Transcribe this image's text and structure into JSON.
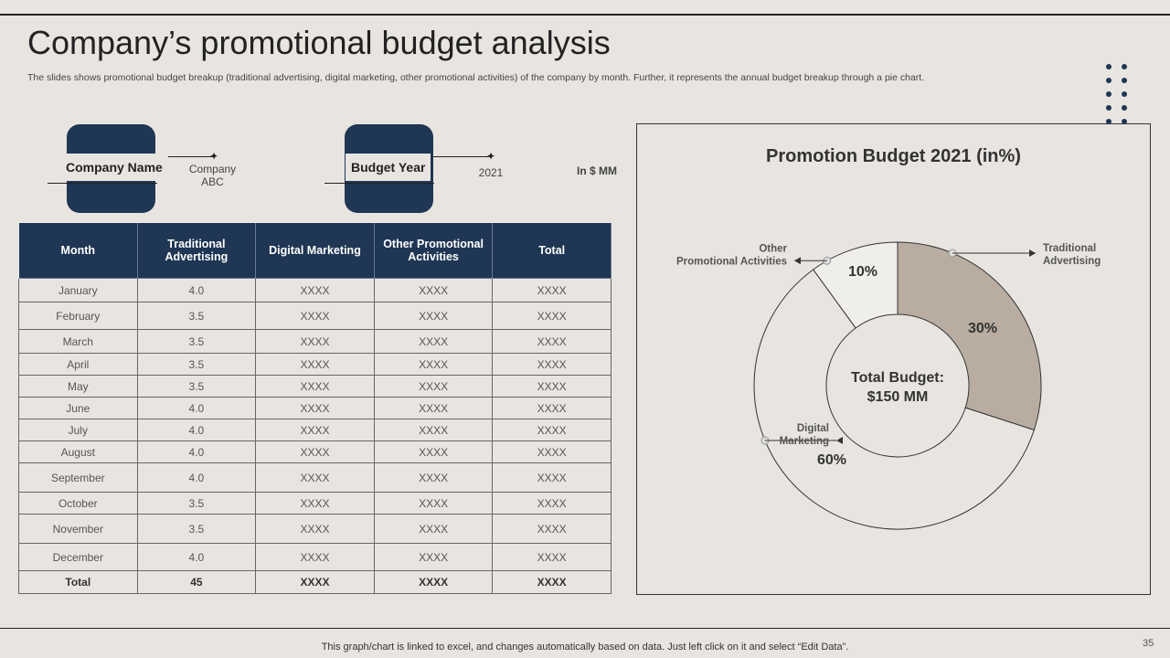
{
  "title": "Company’s promotional budget analysis",
  "subtitle": "The slides shows promotional budget breakup (traditional advertising, digital marketing, other promotional activities) of the company by month. Further, it represents the annual budget breakup through a pie chart.",
  "info": {
    "company_label": "Company Name",
    "company_value_line1": "Company",
    "company_value_line2": "ABC",
    "year_label": "Budget Year",
    "year_value": "2021",
    "unit": "In $ MM"
  },
  "table": {
    "headers": [
      "Month",
      "Traditional Advertising",
      "Digital Marketing",
      "Other Promotional Activities",
      "Total"
    ],
    "rows": [
      [
        "January",
        "4.0",
        "XXXX",
        "XXXX",
        "XXXX"
      ],
      [
        "February",
        "3.5",
        "XXXX",
        "XXXX",
        "XXXX"
      ],
      [
        "March",
        "3.5",
        "XXXX",
        "XXXX",
        "XXXX"
      ],
      [
        "April",
        "3.5",
        "XXXX",
        "XXXX",
        "XXXX"
      ],
      [
        "May",
        "3.5",
        "XXXX",
        "XXXX",
        "XXXX"
      ],
      [
        "June",
        "4.0",
        "XXXX",
        "XXXX",
        "XXXX"
      ],
      [
        "July",
        "4.0",
        "XXXX",
        "XXXX",
        "XXXX"
      ],
      [
        "August",
        "4.0",
        "XXXX",
        "XXXX",
        "XXXX"
      ],
      [
        "September",
        "4.0",
        "XXXX",
        "XXXX",
        "XXXX"
      ],
      [
        "October",
        "3.5",
        "XXXX",
        "XXXX",
        "XXXX"
      ],
      [
        "November",
        "3.5",
        "XXXX",
        "XXXX",
        "XXXX"
      ],
      [
        "December",
        "4.0",
        "XXXX",
        "XXXX",
        "XXXX"
      ]
    ],
    "total_row": [
      "Total",
      "45",
      "XXXX",
      "XXXX",
      "XXXX"
    ]
  },
  "chart_data": {
    "type": "pie",
    "title": "Promotion Budget 2021 (in%)",
    "center_label_line1": "Total Budget:",
    "center_label_line2": "$150 MM",
    "slices": [
      {
        "name": "Traditional Advertising",
        "value": 30,
        "label": "30%",
        "color": "#b8ada0",
        "callout_lines": [
          "Traditional",
          "Advertising"
        ]
      },
      {
        "name": "Digital Marketing",
        "value": 60,
        "label": "60%",
        "color": "#e8e5e1",
        "callout_lines": [
          "Digital",
          "Marketing"
        ]
      },
      {
        "name": "Other Promotional Activities",
        "value": 10,
        "label": "10%",
        "color": "#f0eeeb",
        "callout_lines": [
          "Other",
          "Promotional Activities"
        ]
      }
    ]
  },
  "colors": {
    "navy": "#1f3654",
    "background": "#e8e5e1",
    "accent": "#b8ada0"
  },
  "footer": "This graph/chart is linked to excel,  and changes automatically based on data. Just left click on it and select “Edit Data”.",
  "page_number": "35"
}
